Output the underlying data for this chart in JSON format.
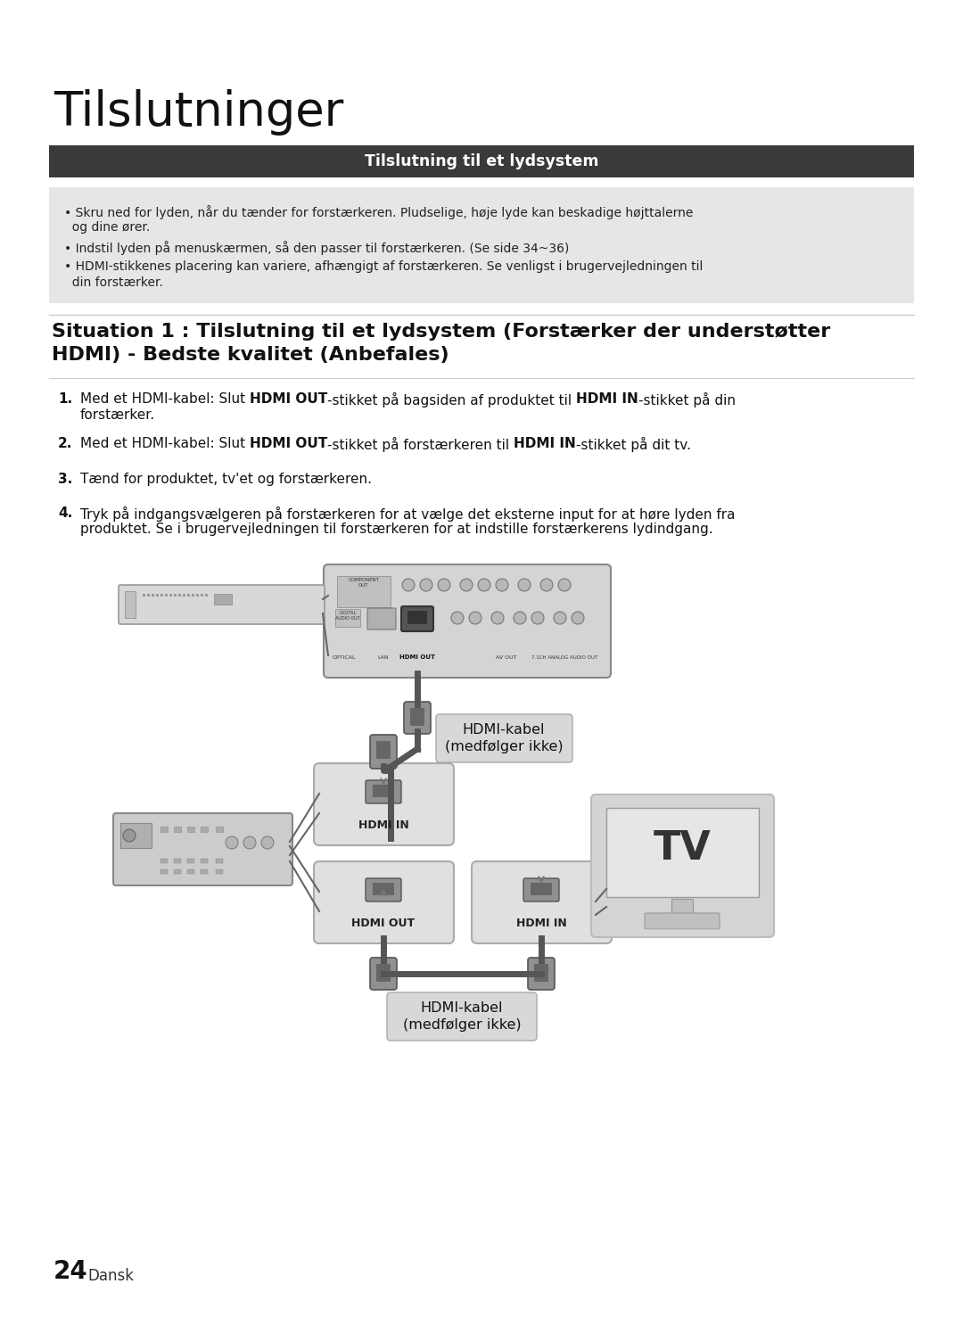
{
  "bg_color": "#ffffff",
  "title": "Tilslutninger",
  "header_bar_text": "Tilslutning til et lydsystem",
  "header_bar_color": "#3a3a3a",
  "header_bar_text_color": "#ffffff",
  "note_bg_color": "#e6e6e6",
  "situation_title": "Situation 1 : Tilslutning til et lydsystem (Forstærker der understøtter\nHDMI) - Bedste kvalitet (Anbefales)",
  "step1_pre": "Med et HDMI-kabel: Slut ",
  "step1_bold1": "HDMI OUT",
  "step1_mid": "-stikket på bagsiden af produktet til ",
  "step1_bold2": "HDMI IN",
  "step1_post": "-stikket på din",
  "step1_cont": "forstærker.",
  "step2_pre": "Med et HDMI-kabel: Slut ",
  "step2_bold1": "HDMI OUT",
  "step2_mid": "-stikket på forstærkeren til ",
  "step2_bold2": "HDMI IN",
  "step2_post": "-stikket på dit tv.",
  "step3": "Tænd for produktet, tv'et og forstærkeren.",
  "step4_line1": "Tryk på indgangsvælgeren på forstærkeren for at vælge det eksterne input for at høre lyden fra",
  "step4_line2": "produktet. Se i brugervejledningen til forstærkeren for at indstille forstærkerens lydindgang.",
  "hdmi_label1": "HDMI-kabel\n(medfølger ikke)",
  "hdmi_label2": "HDMI-kabel\n(medfølger ikke)",
  "hdmi_in_label": "HDMI IN",
  "hdmi_out_label": "HDMI OUT",
  "hdmi_in2_label": "HDMI IN",
  "tv_label": "TV",
  "page_num": "24",
  "page_lang": "Dansk"
}
